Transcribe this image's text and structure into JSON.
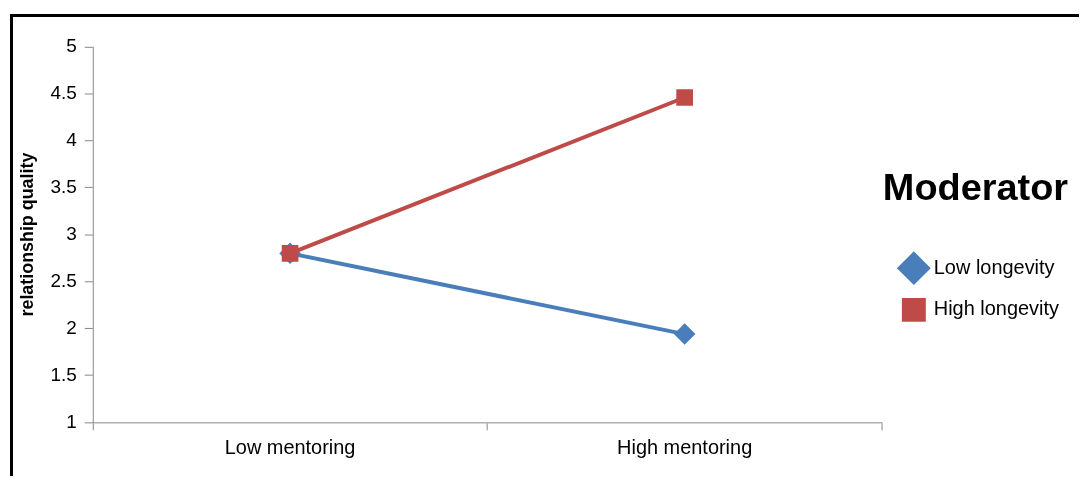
{
  "chart_data": {
    "type": "line",
    "ylabel": "relationship quality",
    "legend_title": "Moderator",
    "categories": [
      "Low mentoring",
      "High mentoring"
    ],
    "series": [
      {
        "name": "Low longevity",
        "color": "#4a7ebb",
        "marker": "diamond",
        "values": [
          2.8,
          1.94
        ]
      },
      {
        "name": "High longevity",
        "color": "#be4b48",
        "marker": "square",
        "values": [
          2.8,
          4.46
        ]
      }
    ],
    "ylim": [
      1,
      5
    ],
    "yticks": [
      1,
      1.5,
      2,
      2.5,
      3,
      3.5,
      4,
      4.5,
      5
    ],
    "grid": false,
    "legend": "right",
    "line_style": "solid"
  }
}
